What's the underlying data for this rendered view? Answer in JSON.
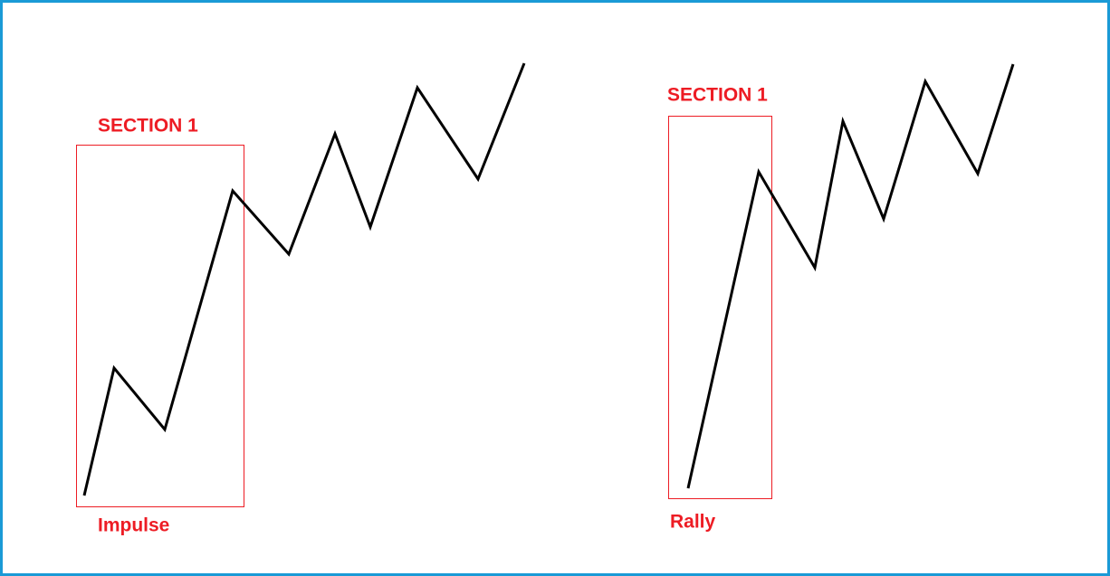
{
  "sections": [
    {
      "title": "SECTION 1",
      "label": "Impulse"
    },
    {
      "title": "SECTION 1",
      "label": "Rally"
    }
  ]
}
